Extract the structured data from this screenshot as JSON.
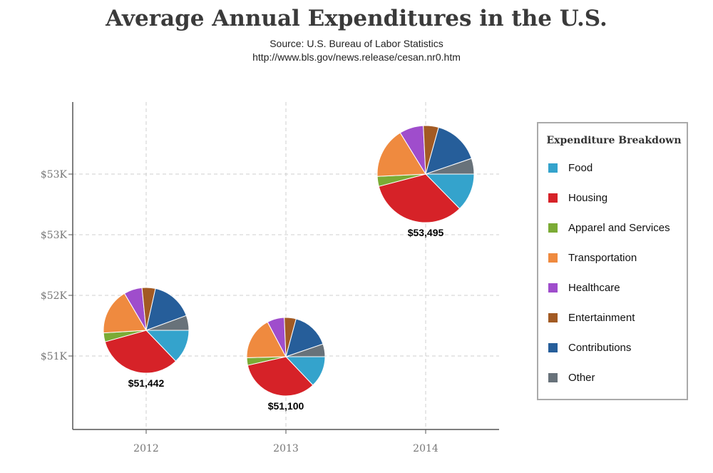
{
  "header": {
    "title": "Average Annual Expenditures in the U.S.",
    "source": "Source: U.S. Bureau of Labor Statistics",
    "url": "http://www.bls.gov/news.release/cesan.nr0.htm"
  },
  "legend": {
    "title": "Expenditure Breakdown",
    "placement": "right"
  },
  "chart_data": {
    "type": "scatter",
    "subtype": "pie-markers",
    "title": "Average Annual Expenditures in the U.S.",
    "xlabel": "",
    "ylabel": "",
    "grid": true,
    "x_ticks": [
      "2012",
      "2013",
      "2014"
    ],
    "y_ticks": [
      "$51K",
      "$52K",
      "$53K",
      "$53K"
    ],
    "ylim": [
      50000,
      54000
    ],
    "categories": [
      "Food",
      "Housing",
      "Apparel and Services",
      "Transportation",
      "Healthcare",
      "Entertainment",
      "Contributions",
      "Other"
    ],
    "colors": [
      "#34a3cc",
      "#d62228",
      "#7bab35",
      "#ef8a3f",
      "#9f4dcc",
      "#a25a23",
      "#265e9a",
      "#68727a"
    ],
    "points": [
      {
        "x": 2012,
        "y": 51442,
        "label": "$51,442",
        "breakdown": [
          6599,
          16887,
          1736,
          8998,
          3556,
          2605,
          8178,
          2883
        ]
      },
      {
        "x": 2013,
        "y": 51100,
        "label": "$51,100",
        "breakdown": [
          6602,
          17148,
          1604,
          9004,
          3631,
          2482,
          7947,
          2682
        ]
      },
      {
        "x": 2014,
        "y": 53495,
        "label": "$53,495",
        "breakdown": [
          6759,
          17798,
          1786,
          9073,
          4290,
          2728,
          8272,
          2789
        ]
      }
    ]
  }
}
